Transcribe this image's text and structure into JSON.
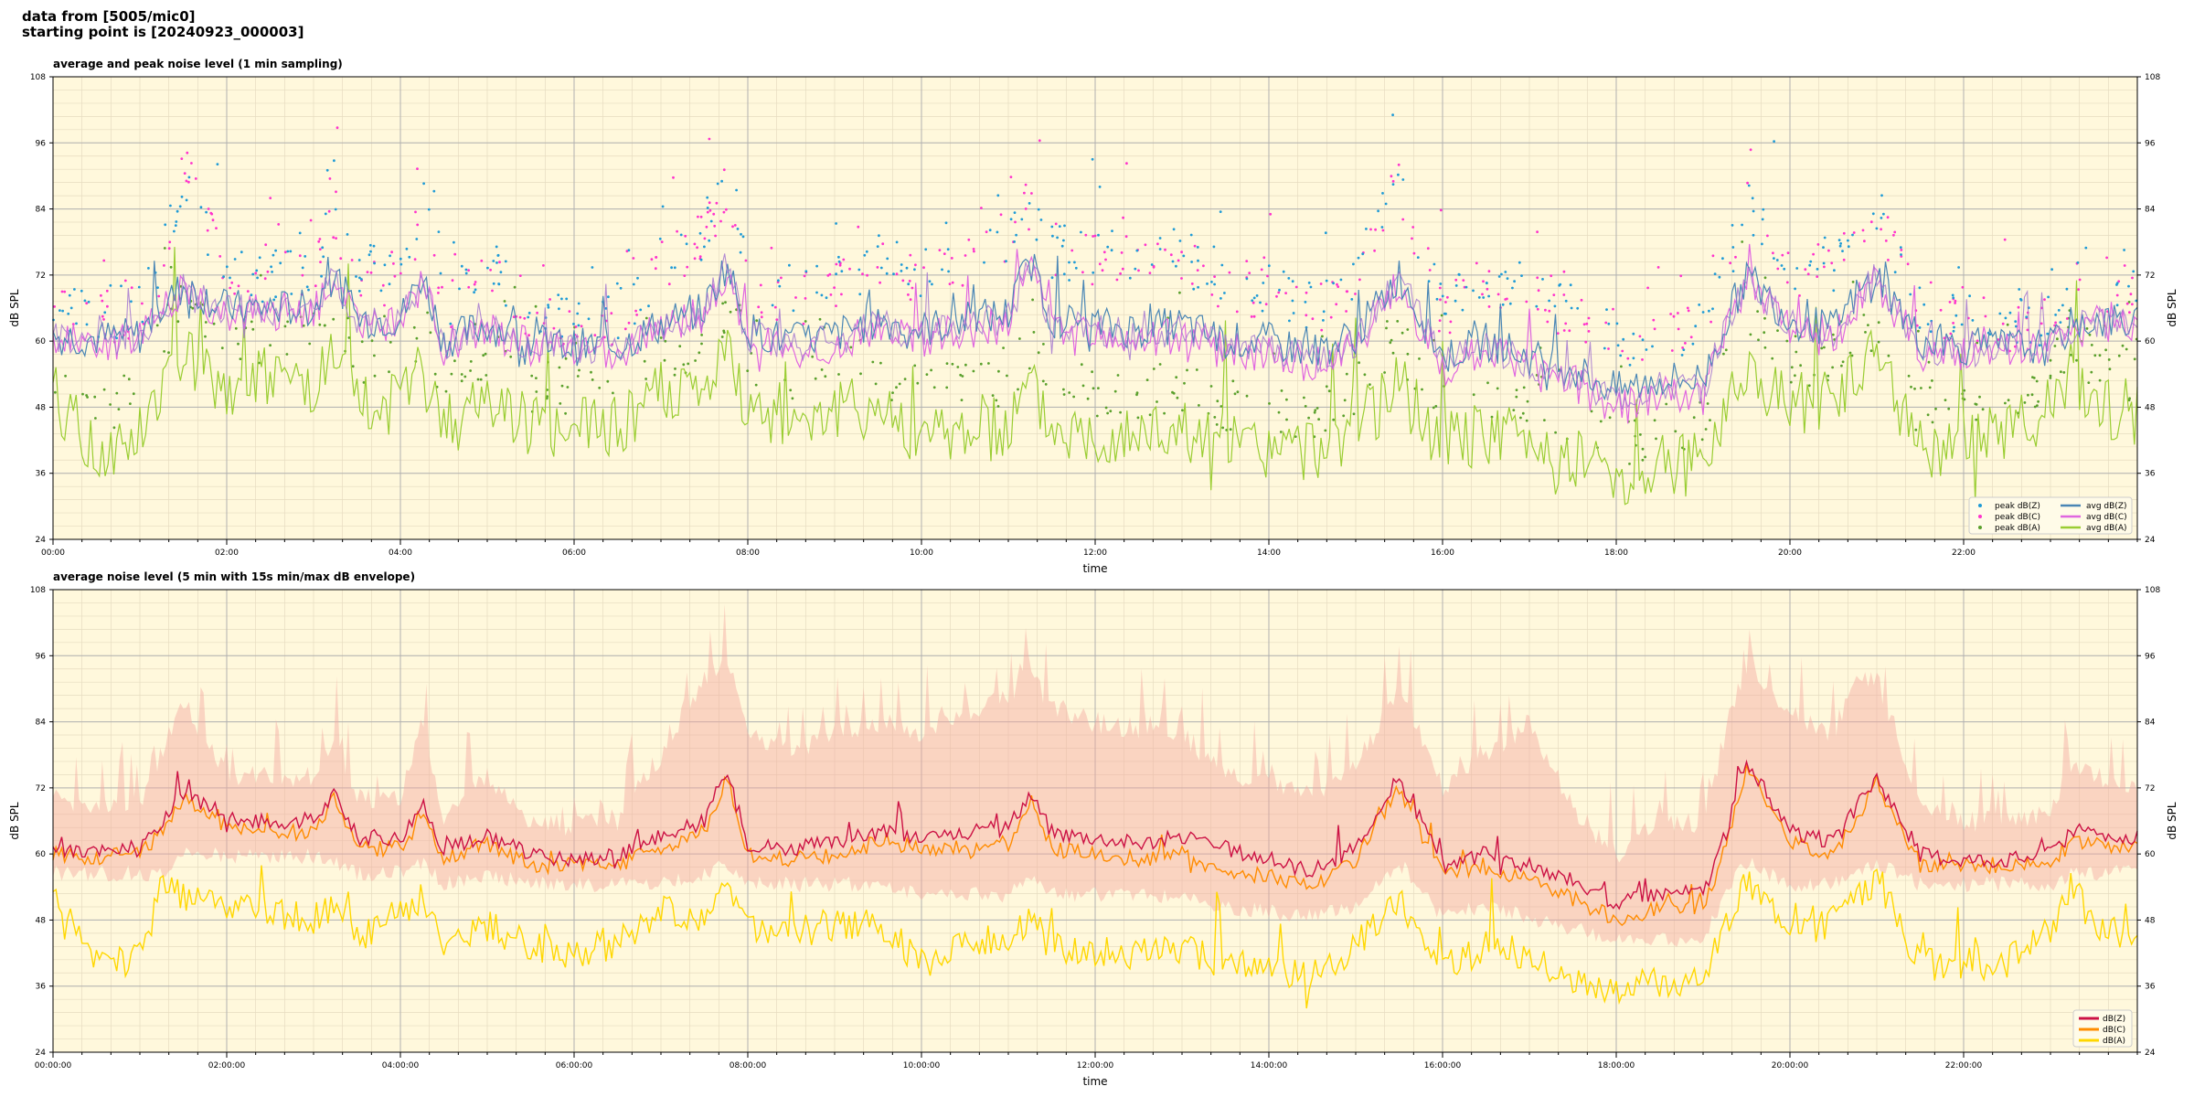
{
  "header": {
    "line1": "data from [5005/mic0]",
    "line2": "starting point is [20240923_000003]"
  },
  "colors": {
    "panel_bg": "#fff8dc",
    "peak_z": "#1f9bd6",
    "peak_c": "#ff33cc",
    "peak_a": "#5aa02c",
    "avg_z": "#4a86b5",
    "avg_c": "#e066e0",
    "avg_a": "#9acd32",
    "line_z": "#cc1144",
    "line_c": "#ff8c00",
    "line_a": "#ffd700",
    "envelope": "#f4a8a0",
    "overlap_purple": "#a070d0"
  },
  "chart_data": [
    {
      "type": "line",
      "title": "average and peak noise level (1 min sampling)",
      "xlabel": "time",
      "ylabel": "dB SPL",
      "ylim": [
        24,
        108
      ],
      "yticks": [
        24,
        36,
        48,
        60,
        72,
        84,
        96,
        108
      ],
      "xlim_hours": [
        0,
        24
      ],
      "xtick_labels": [
        "00:00",
        "02:00",
        "04:00",
        "06:00",
        "08:00",
        "10:00",
        "12:00",
        "14:00",
        "16:00",
        "18:00",
        "20:00",
        "22:00"
      ],
      "grid": true,
      "legend_position": "lower-right",
      "legend": [
        "peak dB(Z)",
        "peak dB(C)",
        "peak dB(A)",
        "avg dB(Z)",
        "avg dB(C)",
        "avg dB(A)"
      ],
      "x_hours": [
        0,
        0.5,
        1,
        1.25,
        1.5,
        2,
        2.5,
        3,
        3.25,
        3.5,
        4,
        4.25,
        4.5,
        5,
        5.5,
        6,
        6.5,
        7,
        7.5,
        7.75,
        8,
        8.5,
        9,
        9.5,
        10,
        10.5,
        11,
        11.25,
        11.5,
        12,
        12.5,
        13,
        13.5,
        14,
        14.5,
        15,
        15.5,
        16,
        16.5,
        17,
        17.5,
        18,
        18.5,
        19,
        19.25,
        19.5,
        20,
        20.5,
        20.75,
        21,
        21.5,
        22,
        22.5,
        23,
        23.25,
        23.5,
        24
      ],
      "series": [
        {
          "name": "avg dB(Z)",
          "values": [
            61,
            60.5,
            61,
            66,
            70,
            66,
            66,
            66,
            72,
            64,
            64,
            72,
            60,
            63,
            60,
            59,
            59,
            63,
            66,
            74,
            62,
            60,
            61,
            64,
            62,
            64,
            65,
            75,
            64,
            63,
            62,
            63,
            60,
            60,
            58,
            61,
            72,
            57,
            60,
            57,
            55,
            51,
            53,
            53,
            63,
            72,
            64,
            62,
            68,
            72,
            60,
            59,
            59,
            59,
            63,
            64,
            63
          ]
        },
        {
          "name": "avg dB(C)",
          "values": [
            60,
            59.5,
            60,
            65,
            69,
            65,
            65,
            65,
            71,
            63,
            63,
            71,
            59,
            62,
            59,
            58,
            58,
            62,
            65,
            73,
            60,
            58,
            59,
            62,
            60,
            62,
            63,
            74,
            62,
            61,
            60,
            61,
            58,
            58,
            55,
            59,
            71,
            55,
            58,
            55,
            52,
            48,
            50,
            50,
            61,
            71,
            62,
            60,
            67,
            71,
            58,
            57,
            58,
            58,
            62,
            63,
            62
          ]
        },
        {
          "name": "avg dB(A)",
          "values": [
            50,
            40,
            43,
            52,
            58,
            52,
            53,
            52,
            57,
            48,
            48,
            55,
            44,
            50,
            45,
            44,
            45,
            51,
            50,
            57,
            48,
            46,
            47,
            48,
            42,
            44,
            44,
            52,
            44,
            43,
            43,
            44,
            41,
            40,
            40,
            44,
            52,
            41,
            43,
            42,
            39,
            36,
            37,
            38,
            48,
            56,
            48,
            50,
            53,
            57,
            40,
            41,
            44,
            48,
            55,
            48,
            47
          ]
        },
        {
          "name": "peak dB(Z)",
          "values": [
            66,
            65,
            66,
            74,
            90,
            72,
            72,
            72,
            84,
            72,
            72,
            86,
            66,
            74,
            66,
            63,
            64,
            74,
            80,
            90,
            70,
            68,
            70,
            74,
            72,
            76,
            78,
            86,
            76,
            76,
            76,
            76,
            70,
            70,
            66,
            72,
            90,
            66,
            72,
            70,
            66,
            60,
            62,
            62,
            72,
            86,
            74,
            74,
            80,
            84,
            66,
            64,
            64,
            64,
            70,
            72,
            70
          ]
        },
        {
          "name": "peak dB(C)",
          "values": [
            65,
            64,
            65,
            73,
            92,
            71,
            71,
            71,
            83,
            71,
            71,
            84,
            65,
            73,
            65,
            62,
            63,
            73,
            79,
            88,
            69,
            67,
            69,
            73,
            71,
            75,
            77,
            85,
            75,
            75,
            75,
            75,
            69,
            69,
            65,
            71,
            88,
            65,
            71,
            69,
            65,
            59,
            61,
            61,
            71,
            85,
            73,
            73,
            79,
            83,
            65,
            63,
            63,
            63,
            69,
            71,
            69
          ]
        },
        {
          "name": "peak dB(A)",
          "values": [
            56,
            46,
            50,
            60,
            66,
            60,
            60,
            60,
            66,
            56,
            56,
            63,
            52,
            58,
            52,
            50,
            52,
            58,
            58,
            66,
            56,
            54,
            55,
            56,
            50,
            52,
            52,
            60,
            52,
            51,
            51,
            52,
            48,
            47,
            46,
            52,
            60,
            48,
            50,
            50,
            46,
            42,
            44,
            44,
            56,
            64,
            56,
            58,
            60,
            64,
            47,
            48,
            51,
            54,
            62,
            55,
            54
          ]
        }
      ]
    },
    {
      "type": "area",
      "title": "average noise level (5 min with 15s min/max dB envelope)",
      "xlabel": "time",
      "ylabel": "dB SPL",
      "ylim": [
        24,
        108
      ],
      "yticks": [
        24,
        36,
        48,
        60,
        72,
        84,
        96,
        108
      ],
      "xlim_hours": [
        0,
        24
      ],
      "xtick_labels": [
        "00:00:00",
        "02:00:00",
        "04:00:00",
        "06:00:00",
        "08:00:00",
        "10:00:00",
        "12:00:00",
        "14:00:00",
        "16:00:00",
        "18:00:00",
        "20:00:00",
        "22:00:00"
      ],
      "grid": true,
      "legend_position": "lower-right",
      "legend": [
        "dB(Z)",
        "dB(C)",
        "dB(A)"
      ],
      "x_hours": [
        0,
        0.5,
        1,
        1.25,
        1.5,
        2,
        2.5,
        3,
        3.25,
        3.5,
        4,
        4.25,
        4.5,
        5,
        5.5,
        6,
        6.5,
        7,
        7.5,
        7.75,
        8,
        8.5,
        9,
        9.5,
        10,
        10.5,
        11,
        11.25,
        11.5,
        12,
        12.5,
        13,
        13.5,
        14,
        14.5,
        15,
        15.5,
        16,
        16.5,
        17,
        17.5,
        18,
        18.5,
        19,
        19.25,
        19.5,
        20,
        20.5,
        20.75,
        21,
        21.5,
        22,
        22.5,
        23,
        23.25,
        23.5,
        24
      ],
      "series": [
        {
          "name": "dB(Z)",
          "values": [
            61,
            60.5,
            61,
            65,
            71,
            66,
            66,
            66,
            71,
            63,
            63,
            69,
            61,
            63,
            60,
            59,
            60,
            63,
            66,
            75,
            62,
            61,
            62,
            64,
            63,
            64,
            65,
            71,
            64,
            63,
            62,
            63,
            61,
            59,
            57,
            61,
            74,
            58,
            60,
            58,
            55,
            51,
            53,
            53,
            63,
            77,
            64,
            62,
            68,
            74,
            60,
            59,
            59,
            60,
            64,
            64,
            63
          ]
        },
        {
          "name": "dB(C)",
          "values": [
            60,
            59.5,
            60,
            64,
            70,
            65,
            64,
            64,
            70,
            61,
            61,
            68,
            59,
            62,
            58,
            58,
            58,
            61,
            64,
            74,
            60,
            59,
            60,
            62,
            61,
            61,
            62,
            70,
            61,
            60,
            59,
            60,
            57,
            56,
            54,
            59,
            72,
            56,
            58,
            55,
            52,
            48,
            50,
            50,
            61,
            76,
            62,
            60,
            66,
            73,
            58,
            58,
            58,
            58,
            62,
            62,
            61
          ]
        },
        {
          "name": "dB(A)",
          "values": [
            52,
            40,
            41,
            54,
            52,
            51,
            49,
            48,
            51,
            44,
            50,
            52,
            44,
            47,
            43,
            42,
            44,
            50,
            48,
            56,
            47,
            46,
            47,
            48,
            40,
            44,
            44,
            48,
            43,
            42,
            42,
            43,
            40,
            39,
            38,
            43,
            52,
            39,
            43,
            42,
            37,
            35,
            37,
            37,
            47,
            55,
            48,
            49,
            51,
            56,
            40,
            40,
            41,
            46,
            55,
            47,
            45
          ]
        },
        {
          "name": "envelope min",
          "values": [
            58,
            58,
            58,
            58,
            62,
            61,
            61,
            61,
            60,
            58,
            58,
            60,
            56,
            58,
            56,
            56,
            56,
            56,
            58,
            60,
            56,
            56,
            56,
            56,
            54,
            54,
            54,
            58,
            54,
            54,
            54,
            54,
            52,
            51,
            50,
            52,
            60,
            50,
            52,
            50,
            48,
            46,
            46,
            46,
            54,
            60,
            56,
            56,
            58,
            60,
            56,
            56,
            56,
            56,
            58,
            58,
            58
          ]
        },
        {
          "name": "envelope max",
          "values": [
            68,
            66,
            67,
            76,
            86,
            72,
            72,
            72,
            80,
            68,
            68,
            82,
            64,
            72,
            64,
            63,
            64,
            76,
            90,
            92,
            80,
            76,
            80,
            82,
            80,
            84,
            86,
            92,
            84,
            82,
            80,
            80,
            72,
            72,
            68,
            74,
            88,
            70,
            76,
            82,
            66,
            58,
            64,
            62,
            80,
            92,
            84,
            80,
            90,
            90,
            68,
            64,
            64,
            66,
            74,
            72,
            70
          ]
        }
      ]
    }
  ]
}
